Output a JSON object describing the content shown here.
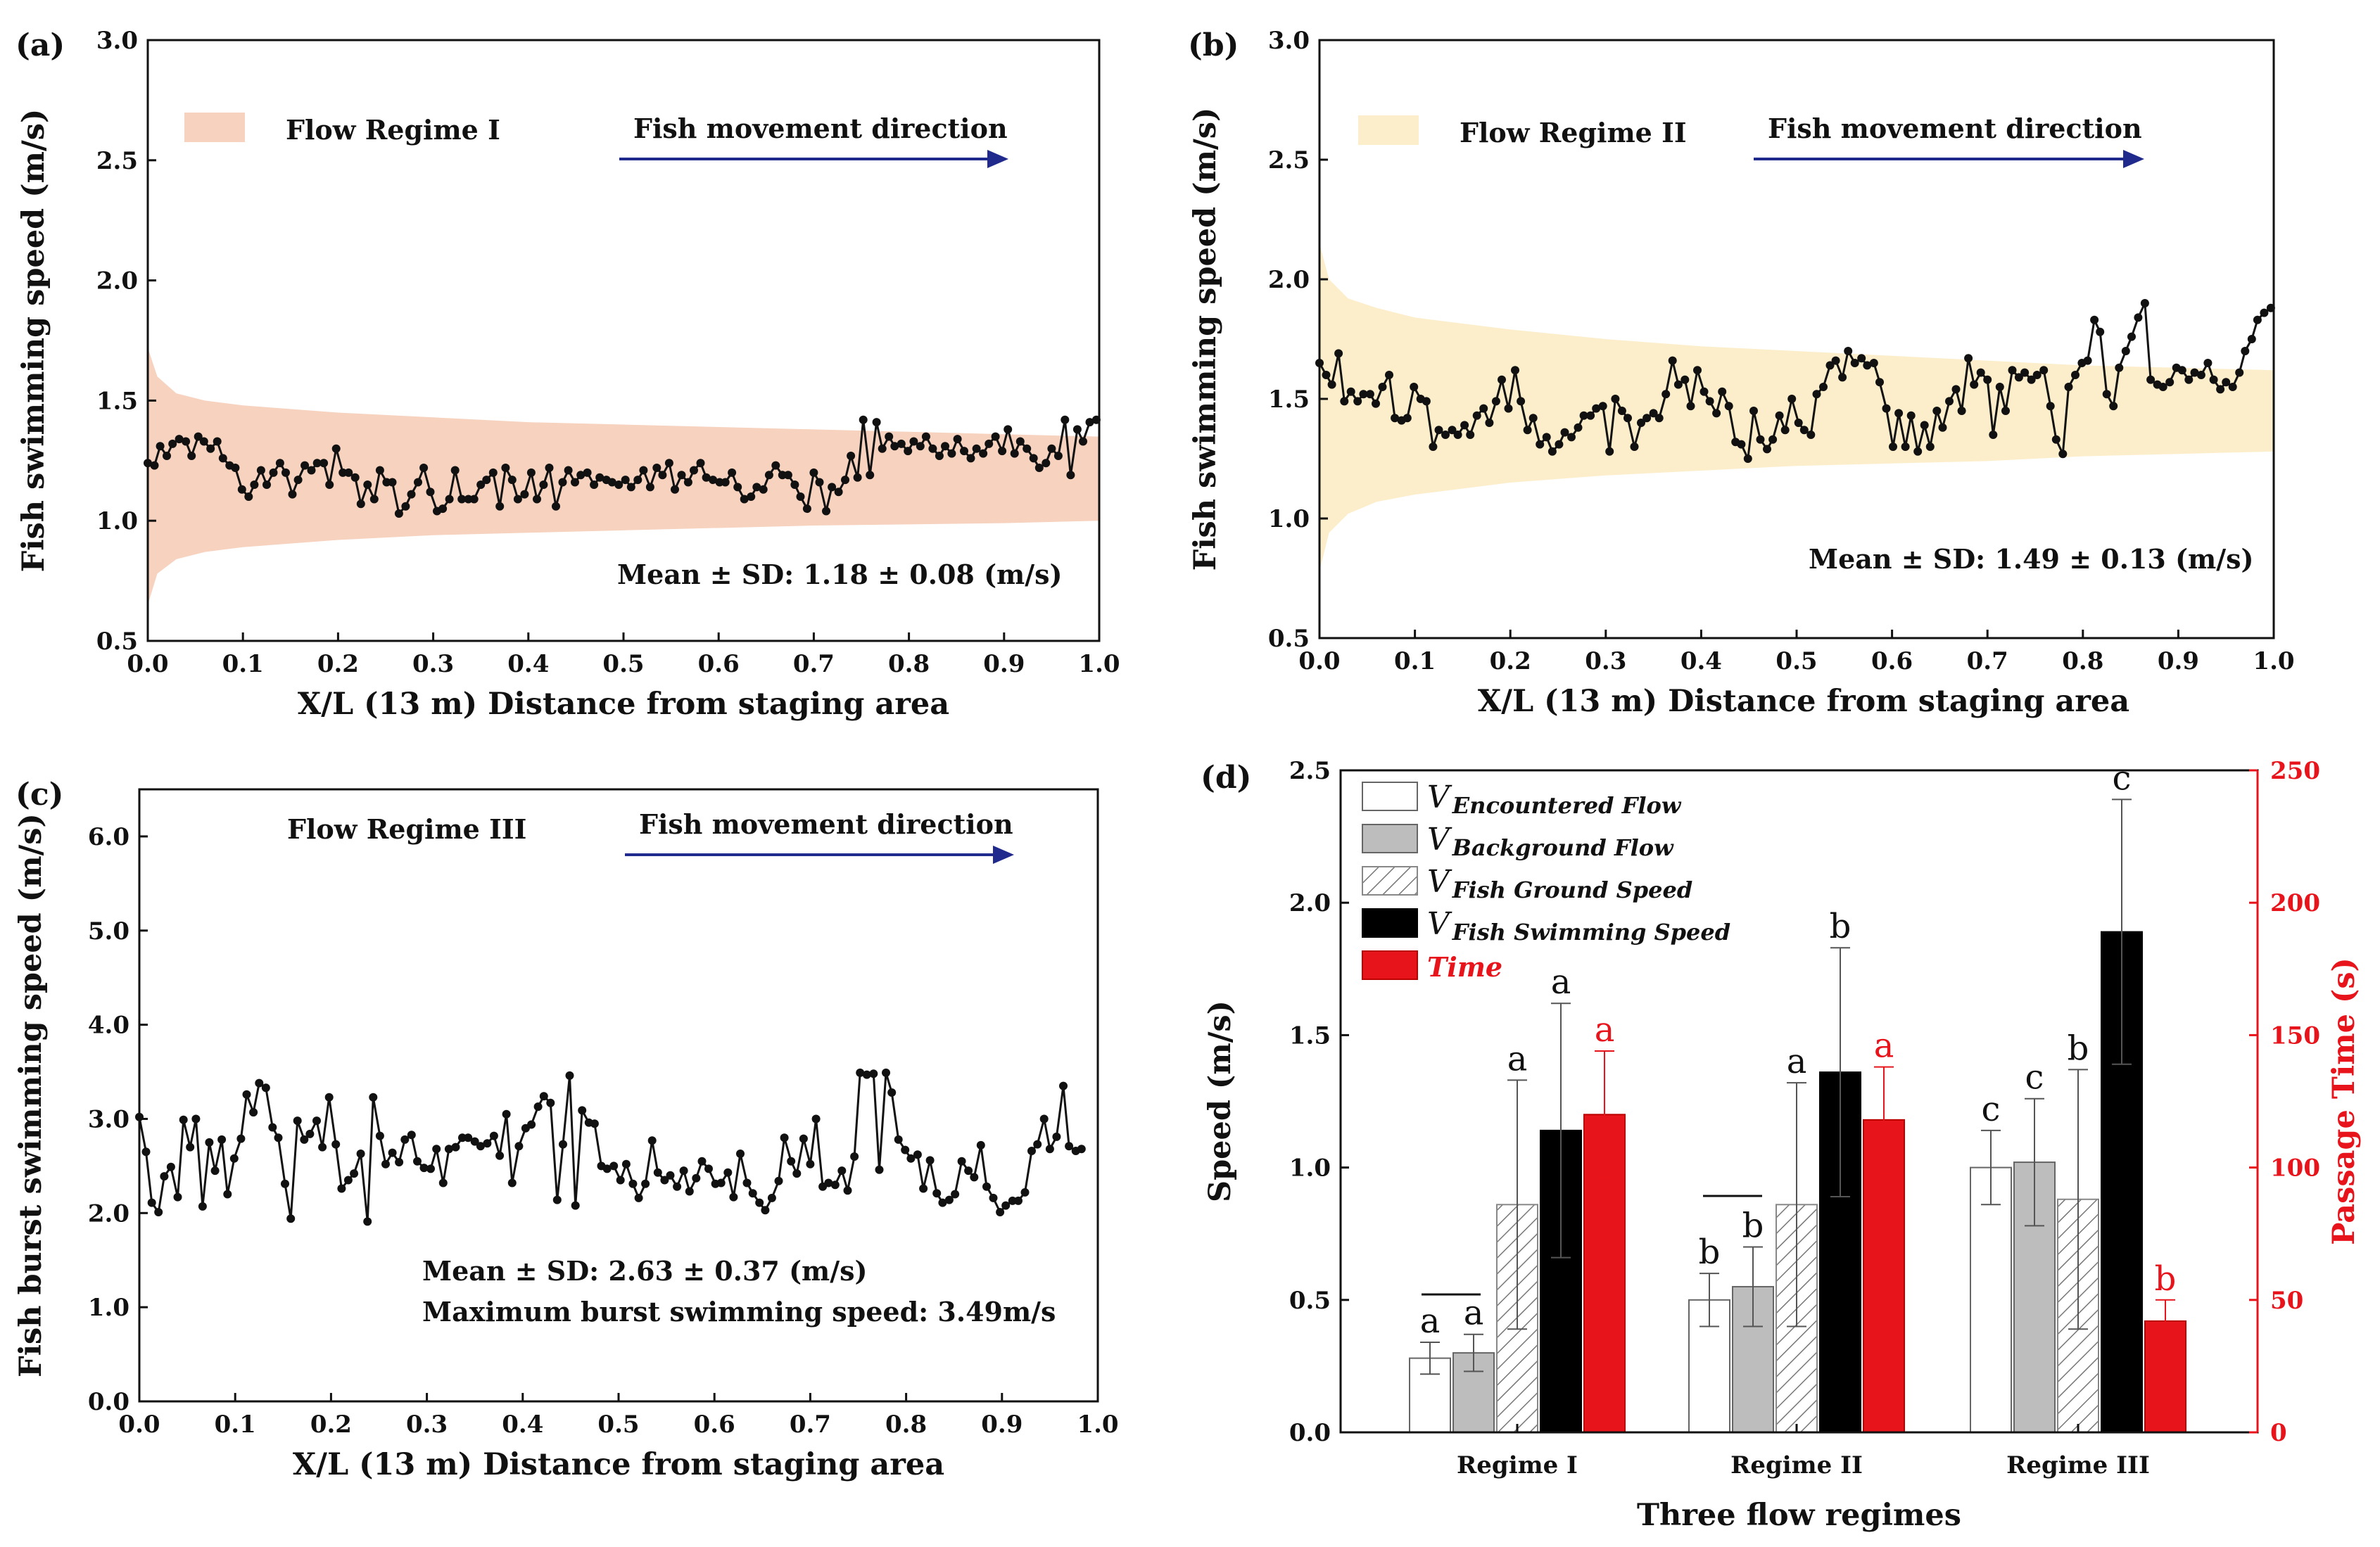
{
  "chart_data": [
    {
      "panel": "(a)",
      "type": "line",
      "xlabel": "X/L (13 m) Distance from staging area",
      "ylabel": "Fish swimming speed (m/s)",
      "xlim": [
        0.0,
        1.0
      ],
      "ylim": [
        0.5,
        3.0
      ],
      "xticks": [
        "0.0",
        "0.1",
        "0.2",
        "0.3",
        "0.4",
        "0.5",
        "0.6",
        "0.7",
        "0.8",
        "0.9",
        "1.0"
      ],
      "yticks": [
        "0.5",
        "1.0",
        "1.5",
        "2.0",
        "2.5",
        "3.0"
      ],
      "band_legend": "Flow Regime I",
      "direction_label": "Fish movement direction",
      "stat_text": "Mean ± SD: 1.18 ± 0.08 (m/s)",
      "band": {
        "x": [
          0.0,
          0.01,
          0.03,
          0.06,
          0.1,
          0.2,
          0.3,
          0.4,
          0.5,
          0.6,
          0.7,
          0.8,
          0.9,
          1.0
        ],
        "upper": [
          1.72,
          1.6,
          1.53,
          1.5,
          1.48,
          1.45,
          1.43,
          1.41,
          1.4,
          1.39,
          1.38,
          1.37,
          1.36,
          1.35
        ],
        "lower": [
          0.65,
          0.78,
          0.84,
          0.87,
          0.89,
          0.92,
          0.94,
          0.95,
          0.96,
          0.97,
          0.98,
          0.985,
          0.99,
          1.0
        ]
      },
      "x": [
        0.0,
        0.007,
        0.013,
        0.02,
        0.026,
        0.033,
        0.04,
        0.046,
        0.053,
        0.059,
        0.066,
        0.073,
        0.079,
        0.086,
        0.092,
        0.099,
        0.106,
        0.112,
        0.119,
        0.125,
        0.132,
        0.139,
        0.145,
        0.152,
        0.158,
        0.165,
        0.172,
        0.178,
        0.185,
        0.191,
        0.198,
        0.205,
        0.211,
        0.218,
        0.224,
        0.231,
        0.238,
        0.244,
        0.251,
        0.257,
        0.264,
        0.271,
        0.277,
        0.284,
        0.29,
        0.297,
        0.304,
        0.31,
        0.317,
        0.323,
        0.33,
        0.337,
        0.343,
        0.35,
        0.356,
        0.363,
        0.37,
        0.376,
        0.383,
        0.389,
        0.396,
        0.403,
        0.409,
        0.416,
        0.422,
        0.429,
        0.436,
        0.442,
        0.449,
        0.455,
        0.462,
        0.469,
        0.475,
        0.482,
        0.488,
        0.495,
        0.502,
        0.508,
        0.515,
        0.521,
        0.528,
        0.535,
        0.541,
        0.548,
        0.554,
        0.561,
        0.568,
        0.574,
        0.581,
        0.587,
        0.594,
        0.601,
        0.607,
        0.614,
        0.62,
        0.627,
        0.634,
        0.64,
        0.647,
        0.653,
        0.66,
        0.667,
        0.673,
        0.68,
        0.686,
        0.693,
        0.7,
        0.706,
        0.713,
        0.719,
        0.726,
        0.733,
        0.739,
        0.746,
        0.752,
        0.759,
        0.766,
        0.772,
        0.779,
        0.785,
        0.792,
        0.799,
        0.805,
        0.812,
        0.818,
        0.825,
        0.832,
        0.838,
        0.845,
        0.851,
        0.858,
        0.865,
        0.871,
        0.878,
        0.884,
        0.891,
        0.898,
        0.904,
        0.911,
        0.917,
        0.924,
        0.931,
        0.937,
        0.944,
        0.95,
        0.957,
        0.964,
        0.97,
        0.977,
        0.983,
        0.99,
        0.997
      ],
      "y": [
        1.24,
        1.23,
        1.31,
        1.27,
        1.32,
        1.34,
        1.33,
        1.27,
        1.35,
        1.33,
        1.3,
        1.33,
        1.26,
        1.23,
        1.22,
        1.13,
        1.1,
        1.15,
        1.21,
        1.15,
        1.2,
        1.24,
        1.2,
        1.11,
        1.17,
        1.23,
        1.21,
        1.24,
        1.24,
        1.15,
        1.3,
        1.2,
        1.2,
        1.18,
        1.07,
        1.15,
        1.09,
        1.21,
        1.16,
        1.16,
        1.03,
        1.06,
        1.11,
        1.16,
        1.22,
        1.12,
        1.04,
        1.05,
        1.09,
        1.21,
        1.09,
        1.09,
        1.09,
        1.15,
        1.17,
        1.2,
        1.06,
        1.22,
        1.17,
        1.09,
        1.11,
        1.2,
        1.09,
        1.15,
        1.22,
        1.06,
        1.16,
        1.21,
        1.16,
        1.19,
        1.2,
        1.15,
        1.18,
        1.17,
        1.16,
        1.15,
        1.17,
        1.14,
        1.17,
        1.21,
        1.14,
        1.22,
        1.19,
        1.24,
        1.13,
        1.19,
        1.16,
        1.21,
        1.24,
        1.18,
        1.17,
        1.16,
        1.16,
        1.2,
        1.14,
        1.09,
        1.1,
        1.14,
        1.13,
        1.19,
        1.23,
        1.19,
        1.19,
        1.15,
        1.1,
        1.05,
        1.2,
        1.16,
        1.04,
        1.14,
        1.12,
        1.17,
        1.27,
        1.18,
        1.42,
        1.19,
        1.41,
        1.3,
        1.35,
        1.31,
        1.32,
        1.29,
        1.33,
        1.31,
        1.35,
        1.3,
        1.27,
        1.31,
        1.28,
        1.34,
        1.29,
        1.26,
        1.3,
        1.28,
        1.32,
        1.35,
        1.29,
        1.38,
        1.28,
        1.33,
        1.3,
        1.26,
        1.22,
        1.24,
        1.3,
        1.27,
        1.42,
        1.19,
        1.38,
        1.33,
        1.41,
        1.42
      ]
    },
    {
      "panel": "(b)",
      "type": "line",
      "xlabel": "X/L (13 m) Distance from staging area",
      "ylabel": "Fish swimming speed (m/s)",
      "xlim": [
        0.0,
        1.0
      ],
      "ylim": [
        0.5,
        3.0
      ],
      "xticks": [
        "0.0",
        "0.1",
        "0.2",
        "0.3",
        "0.4",
        "0.5",
        "0.6",
        "0.7",
        "0.8",
        "0.9",
        "1.0"
      ],
      "yticks": [
        "0.5",
        "1.0",
        "1.5",
        "2.0",
        "2.5",
        "3.0"
      ],
      "band_legend": "Flow Regime II",
      "direction_label": "Fish movement direction",
      "stat_text": "Mean ± SD: 1.49 ± 0.13 (m/s)",
      "band": {
        "x": [
          0.0,
          0.01,
          0.03,
          0.06,
          0.1,
          0.2,
          0.3,
          0.4,
          0.5,
          0.6,
          0.7,
          0.8,
          0.9,
          1.0
        ],
        "upper": [
          2.15,
          2.0,
          1.92,
          1.88,
          1.84,
          1.79,
          1.75,
          1.72,
          1.7,
          1.68,
          1.66,
          1.64,
          1.63,
          1.62
        ],
        "lower": [
          0.78,
          0.94,
          1.02,
          1.07,
          1.1,
          1.15,
          1.18,
          1.2,
          1.22,
          1.23,
          1.24,
          1.26,
          1.27,
          1.28
        ]
      },
      "x": [
        0.0,
        0.007,
        0.013,
        0.02,
        0.026,
        0.033,
        0.04,
        0.046,
        0.053,
        0.059,
        0.066,
        0.073,
        0.079,
        0.086,
        0.092,
        0.099,
        0.106,
        0.112,
        0.119,
        0.125,
        0.132,
        0.139,
        0.145,
        0.152,
        0.158,
        0.165,
        0.172,
        0.178,
        0.185,
        0.191,
        0.198,
        0.205,
        0.211,
        0.218,
        0.224,
        0.231,
        0.238,
        0.244,
        0.251,
        0.257,
        0.264,
        0.271,
        0.277,
        0.284,
        0.29,
        0.297,
        0.304,
        0.31,
        0.317,
        0.323,
        0.33,
        0.337,
        0.343,
        0.35,
        0.356,
        0.363,
        0.37,
        0.376,
        0.383,
        0.389,
        0.396,
        0.403,
        0.409,
        0.416,
        0.422,
        0.429,
        0.436,
        0.442,
        0.449,
        0.455,
        0.462,
        0.469,
        0.475,
        0.482,
        0.488,
        0.495,
        0.502,
        0.508,
        0.515,
        0.521,
        0.528,
        0.535,
        0.541,
        0.548,
        0.554,
        0.561,
        0.568,
        0.574,
        0.581,
        0.587,
        0.594,
        0.601,
        0.607,
        0.614,
        0.62,
        0.627,
        0.634,
        0.64,
        0.647,
        0.653,
        0.66,
        0.667,
        0.673,
        0.68,
        0.686,
        0.693,
        0.7,
        0.706,
        0.713,
        0.719,
        0.726,
        0.733,
        0.739,
        0.746,
        0.752,
        0.759,
        0.766,
        0.772,
        0.779,
        0.785,
        0.792,
        0.799,
        0.805,
        0.812,
        0.818,
        0.825,
        0.832,
        0.838,
        0.845,
        0.851,
        0.858,
        0.865,
        0.871,
        0.878,
        0.884,
        0.891,
        0.898,
        0.904,
        0.911,
        0.917,
        0.924,
        0.931,
        0.937,
        0.944,
        0.95,
        0.957,
        0.964,
        0.97,
        0.977,
        0.983,
        0.99,
        0.997
      ],
      "y": [
        1.65,
        1.6,
        1.56,
        1.69,
        1.49,
        1.53,
        1.49,
        1.52,
        1.52,
        1.48,
        1.55,
        1.6,
        1.42,
        1.41,
        1.42,
        1.55,
        1.5,
        1.49,
        1.3,
        1.37,
        1.35,
        1.37,
        1.35,
        1.39,
        1.35,
        1.43,
        1.46,
        1.4,
        1.49,
        1.58,
        1.46,
        1.62,
        1.49,
        1.37,
        1.42,
        1.31,
        1.34,
        1.28,
        1.31,
        1.36,
        1.34,
        1.38,
        1.43,
        1.43,
        1.46,
        1.47,
        1.28,
        1.5,
        1.45,
        1.42,
        1.3,
        1.4,
        1.42,
        1.44,
        1.42,
        1.52,
        1.66,
        1.56,
        1.58,
        1.47,
        1.62,
        1.53,
        1.49,
        1.44,
        1.53,
        1.47,
        1.32,
        1.31,
        1.25,
        1.45,
        1.33,
        1.29,
        1.33,
        1.43,
        1.37,
        1.5,
        1.4,
        1.37,
        1.35,
        1.52,
        1.55,
        1.64,
        1.66,
        1.59,
        1.7,
        1.65,
        1.67,
        1.64,
        1.65,
        1.57,
        1.46,
        1.3,
        1.44,
        1.3,
        1.43,
        1.28,
        1.39,
        1.3,
        1.45,
        1.38,
        1.49,
        1.54,
        1.45,
        1.67,
        1.56,
        1.61,
        1.58,
        1.35,
        1.55,
        1.45,
        1.62,
        1.59,
        1.61,
        1.58,
        1.6,
        1.62,
        1.47,
        1.33,
        1.27,
        1.55,
        1.6,
        1.65,
        1.66,
        1.83,
        1.78,
        1.52,
        1.47,
        1.63,
        1.7,
        1.76,
        1.84,
        1.9,
        1.58,
        1.56,
        1.55,
        1.57,
        1.63,
        1.62,
        1.58,
        1.61,
        1.6,
        1.65,
        1.58,
        1.54,
        1.57,
        1.55,
        1.61,
        1.7,
        1.75,
        1.83,
        1.86,
        1.88
      ]
    },
    {
      "panel": "(c)",
      "type": "line",
      "xlabel": "X/L (13 m) Distance from staging area",
      "ylabel": "Fish burst swimming speed (m/s)",
      "xlim": [
        0.0,
        1.0
      ],
      "ylim": [
        0.0,
        6.5
      ],
      "xticks": [
        "0.0",
        "0.1",
        "0.2",
        "0.3",
        "0.4",
        "0.5",
        "0.6",
        "0.7",
        "0.8",
        "0.9",
        "1.0"
      ],
      "yticks": [
        "0.0",
        "1.0",
        "2.0",
        "3.0",
        "4.0",
        "5.0",
        "6.0"
      ],
      "band_legend": "Flow Regime III",
      "direction_label": "Fish movement direction",
      "stat_text": "Mean ± SD: 2.63 ± 0.37 (m/s)",
      "stat_text2": "Maximum burst swimming speed: 3.49m/s",
      "x": [
        0.0,
        0.007,
        0.013,
        0.02,
        0.026,
        0.033,
        0.04,
        0.046,
        0.053,
        0.059,
        0.066,
        0.073,
        0.079,
        0.086,
        0.092,
        0.099,
        0.106,
        0.112,
        0.119,
        0.125,
        0.132,
        0.139,
        0.145,
        0.152,
        0.158,
        0.165,
        0.172,
        0.178,
        0.185,
        0.191,
        0.198,
        0.205,
        0.211,
        0.218,
        0.224,
        0.231,
        0.238,
        0.244,
        0.251,
        0.257,
        0.264,
        0.271,
        0.277,
        0.284,
        0.29,
        0.297,
        0.304,
        0.31,
        0.317,
        0.323,
        0.33,
        0.337,
        0.343,
        0.35,
        0.356,
        0.363,
        0.37,
        0.376,
        0.383,
        0.389,
        0.396,
        0.403,
        0.409,
        0.416,
        0.422,
        0.429,
        0.436,
        0.442,
        0.449,
        0.455,
        0.462,
        0.469,
        0.475,
        0.482,
        0.488,
        0.495,
        0.502,
        0.508,
        0.515,
        0.521,
        0.528,
        0.535,
        0.541,
        0.548,
        0.554,
        0.561,
        0.568,
        0.574,
        0.581,
        0.587,
        0.594,
        0.601,
        0.607,
        0.614,
        0.62,
        0.627,
        0.634,
        0.64,
        0.647,
        0.653,
        0.66,
        0.667,
        0.673,
        0.68,
        0.686,
        0.693,
        0.7,
        0.706,
        0.713,
        0.719,
        0.726,
        0.733,
        0.739,
        0.746,
        0.752,
        0.759,
        0.766,
        0.772,
        0.779,
        0.785,
        0.792,
        0.799,
        0.805,
        0.812,
        0.818,
        0.825,
        0.832,
        0.838,
        0.845,
        0.851,
        0.858,
        0.865,
        0.871,
        0.878,
        0.884,
        0.891,
        0.898,
        0.904,
        0.911,
        0.917,
        0.924,
        0.931,
        0.937,
        0.944,
        0.95,
        0.957,
        0.964,
        0.97,
        0.977,
        0.983
      ],
      "y": [
        3.02,
        2.65,
        2.11,
        2.01,
        2.39,
        2.49,
        2.17,
        2.99,
        2.7,
        3.0,
        2.07,
        2.75,
        2.45,
        2.78,
        2.2,
        2.58,
        2.79,
        3.26,
        3.07,
        3.38,
        3.33,
        2.91,
        2.8,
        2.31,
        1.94,
        2.98,
        2.78,
        2.84,
        2.98,
        2.7,
        3.23,
        2.73,
        2.26,
        2.35,
        2.42,
        2.63,
        1.91,
        3.23,
        2.82,
        2.52,
        2.64,
        2.54,
        2.78,
        2.83,
        2.55,
        2.48,
        2.47,
        2.68,
        2.32,
        2.68,
        2.7,
        2.8,
        2.8,
        2.76,
        2.71,
        2.74,
        2.82,
        2.61,
        3.05,
        2.32,
        2.71,
        2.9,
        2.94,
        3.13,
        3.24,
        3.17,
        2.14,
        2.73,
        3.46,
        2.08,
        3.09,
        2.96,
        2.95,
        2.5,
        2.47,
        2.5,
        2.35,
        2.52,
        2.31,
        2.16,
        2.31,
        2.77,
        2.43,
        2.35,
        2.4,
        2.28,
        2.45,
        2.23,
        2.37,
        2.55,
        2.47,
        2.31,
        2.32,
        2.43,
        2.17,
        2.63,
        2.32,
        2.21,
        2.11,
        2.03,
        2.16,
        2.34,
        2.8,
        2.55,
        2.42,
        2.79,
        2.52,
        3.0,
        2.28,
        2.32,
        2.3,
        2.45,
        2.24,
        2.6,
        3.49,
        3.47,
        3.48,
        2.46,
        3.49,
        3.28,
        2.78,
        2.67,
        2.58,
        2.62,
        2.26,
        2.56,
        2.21,
        2.11,
        2.14,
        2.2,
        2.55,
        2.45,
        2.38,
        2.72,
        2.28,
        2.16,
        2.01,
        2.08,
        2.13,
        2.13,
        2.22,
        2.66,
        2.73,
        3.0,
        2.68,
        2.81,
        3.35,
        2.71,
        2.66,
        2.68
      ]
    },
    {
      "panel": "(d)",
      "type": "bar",
      "xlabel": "Three flow regimes",
      "ylabel": "Speed (m/s)",
      "y2label": "Passage Time (s)",
      "ylim": [
        0.0,
        2.5
      ],
      "y2lim": [
        0,
        250
      ],
      "yticks": [
        "0.0",
        "0.5",
        "1.0",
        "1.5",
        "2.0",
        "2.5"
      ],
      "y2ticks": [
        "0",
        "50",
        "100",
        "150",
        "200",
        "250"
      ],
      "categories": [
        "Regime I",
        "Regime II",
        "Regime III"
      ],
      "legend": [
        {
          "symbol": "V",
          "sub": "Encountered Flow",
          "style": "white"
        },
        {
          "symbol": "V",
          "sub": "Background Flow",
          "style": "gray"
        },
        {
          "symbol": "V",
          "sub": "Fish Ground Speed",
          "style": "hatch"
        },
        {
          "symbol": "V",
          "sub": "Fish Swimming Speed",
          "style": "black"
        },
        {
          "symbol": "",
          "sub": "Time",
          "style": "red"
        }
      ],
      "series": [
        {
          "name": "V Encountered Flow",
          "axis": "left",
          "values": [
            0.28,
            0.5,
            1.0
          ],
          "errors": [
            0.06,
            0.1,
            0.14
          ],
          "letters": [
            "a",
            "b",
            "c"
          ]
        },
        {
          "name": "V Background Flow",
          "axis": "left",
          "values": [
            0.3,
            0.55,
            1.02
          ],
          "errors": [
            0.07,
            0.15,
            0.24
          ],
          "letters": [
            "a",
            "b",
            "c"
          ]
        },
        {
          "name": "V Fish Ground Speed",
          "axis": "left",
          "values": [
            0.86,
            0.86,
            0.88
          ],
          "errors": [
            0.47,
            0.46,
            0.49
          ],
          "letters": [
            "a",
            "a",
            "b"
          ]
        },
        {
          "name": "V Fish Swimming Speed",
          "axis": "left",
          "values": [
            1.14,
            1.36,
            1.89
          ],
          "errors": [
            0.48,
            0.47,
            0.5
          ],
          "letters": [
            "a",
            "b",
            "c"
          ]
        },
        {
          "name": "Time",
          "axis": "right",
          "values": [
            120,
            118,
            42
          ],
          "errors": [
            24,
            20,
            8
          ],
          "letters": [
            "a",
            "a",
            "b"
          ]
        }
      ]
    }
  ]
}
